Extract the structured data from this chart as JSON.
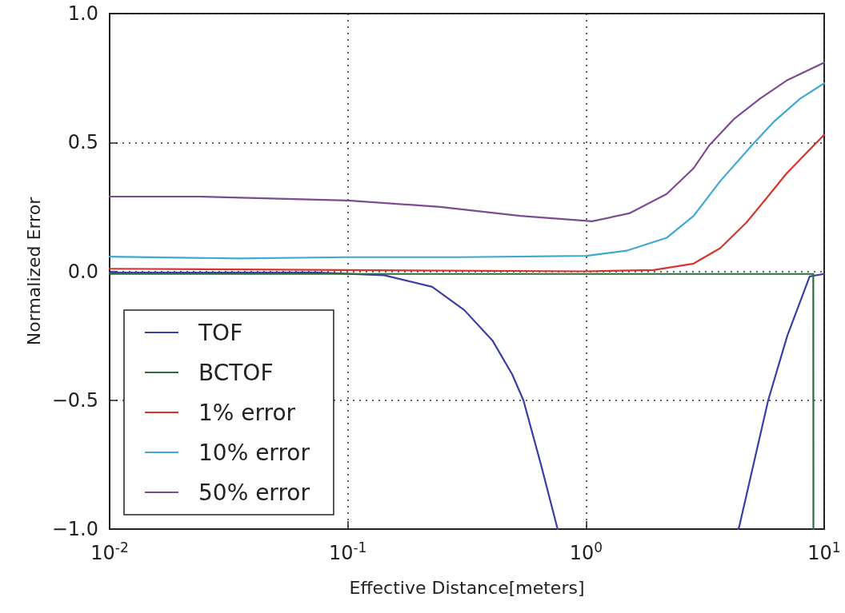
{
  "chart_data": {
    "type": "line",
    "xlabel": "Effective Distance[meters]",
    "ylabel": "Normalized Error",
    "log": "x",
    "xlim": [
      0.01,
      10
    ],
    "xticks": [
      {
        "value": 0.01,
        "label": "10$^{-2}$"
      },
      {
        "value": 0.1,
        "label": "10$^{-1}$"
      },
      {
        "value": 1,
        "label": "10$^{0}$"
      },
      {
        "value": 10,
        "label": "10$^{1}$"
      }
    ],
    "ylim": [
      -1,
      1
    ],
    "yticks": [
      {
        "value": -1,
        "label": "−1.0"
      },
      {
        "value": -0.5,
        "label": "−0.5"
      },
      {
        "value": 0,
        "label": "0.0"
      },
      {
        "value": 0.5,
        "label": "0.5"
      },
      {
        "value": 1,
        "label": "1.0"
      }
    ],
    "grid": true,
    "legend": "bottom left",
    "marker": "none",
    "line_style": "solid",
    "series": [
      {
        "name": "TOF",
        "color": "#3a3fa8",
        "x": [
          0.01,
          0.035,
          0.076,
          0.142,
          0.226,
          0.308,
          0.406,
          0.49,
          0.546,
          0.647,
          0.76,
          1.8,
          4.35,
          4.4,
          5.82,
          7.0,
          8.69,
          10
        ],
        "values": [
          -0.005,
          -0.005,
          -0.005,
          -0.015,
          -0.06,
          -0.15,
          -0.27,
          -0.4,
          -0.5,
          -0.75,
          -1.0,
          null,
          -1.0,
          -0.99,
          -0.5,
          -0.25,
          -0.02,
          -0.01
        ]
      },
      {
        "name": "BCTOF",
        "color": "#2e6b3e",
        "x": [
          0.01,
          0.1,
          1,
          9.0,
          9.01,
          9.05
        ],
        "values": [
          -0.01,
          -0.01,
          -0.01,
          -0.01,
          -1.0,
          -1.0
        ]
      },
      {
        "name": "1% error",
        "color": "#d9342b",
        "x": [
          0.01,
          0.1,
          1,
          1.92,
          2.83,
          3.66,
          4.72,
          5.68,
          6.95,
          10
        ],
        "values": [
          0.01,
          0.005,
          0.0,
          0.005,
          0.03,
          0.09,
          0.19,
          0.28,
          0.38,
          0.53
        ]
      },
      {
        "name": "10% error",
        "color": "#3fa9d4",
        "x": [
          0.01,
          0.035,
          0.1,
          0.3,
          1,
          1.48,
          2.18,
          2.83,
          3.66,
          4.98,
          6.14,
          7.93,
          10
        ],
        "values": [
          0.057,
          0.05,
          0.055,
          0.055,
          0.06,
          0.08,
          0.13,
          0.215,
          0.35,
          0.49,
          0.58,
          0.67,
          0.73
        ]
      },
      {
        "name": "50% error",
        "color": "#7b4b94",
        "x": [
          0.01,
          0.024,
          0.1,
          0.244,
          0.53,
          1.06,
          1.52,
          2.18,
          2.83,
          3.3,
          4.17,
          5.38,
          6.95,
          10
        ],
        "values": [
          0.29,
          0.29,
          0.275,
          0.25,
          0.215,
          0.194,
          0.225,
          0.3,
          0.4,
          0.49,
          0.59,
          0.67,
          0.74,
          0.81
        ]
      }
    ]
  }
}
